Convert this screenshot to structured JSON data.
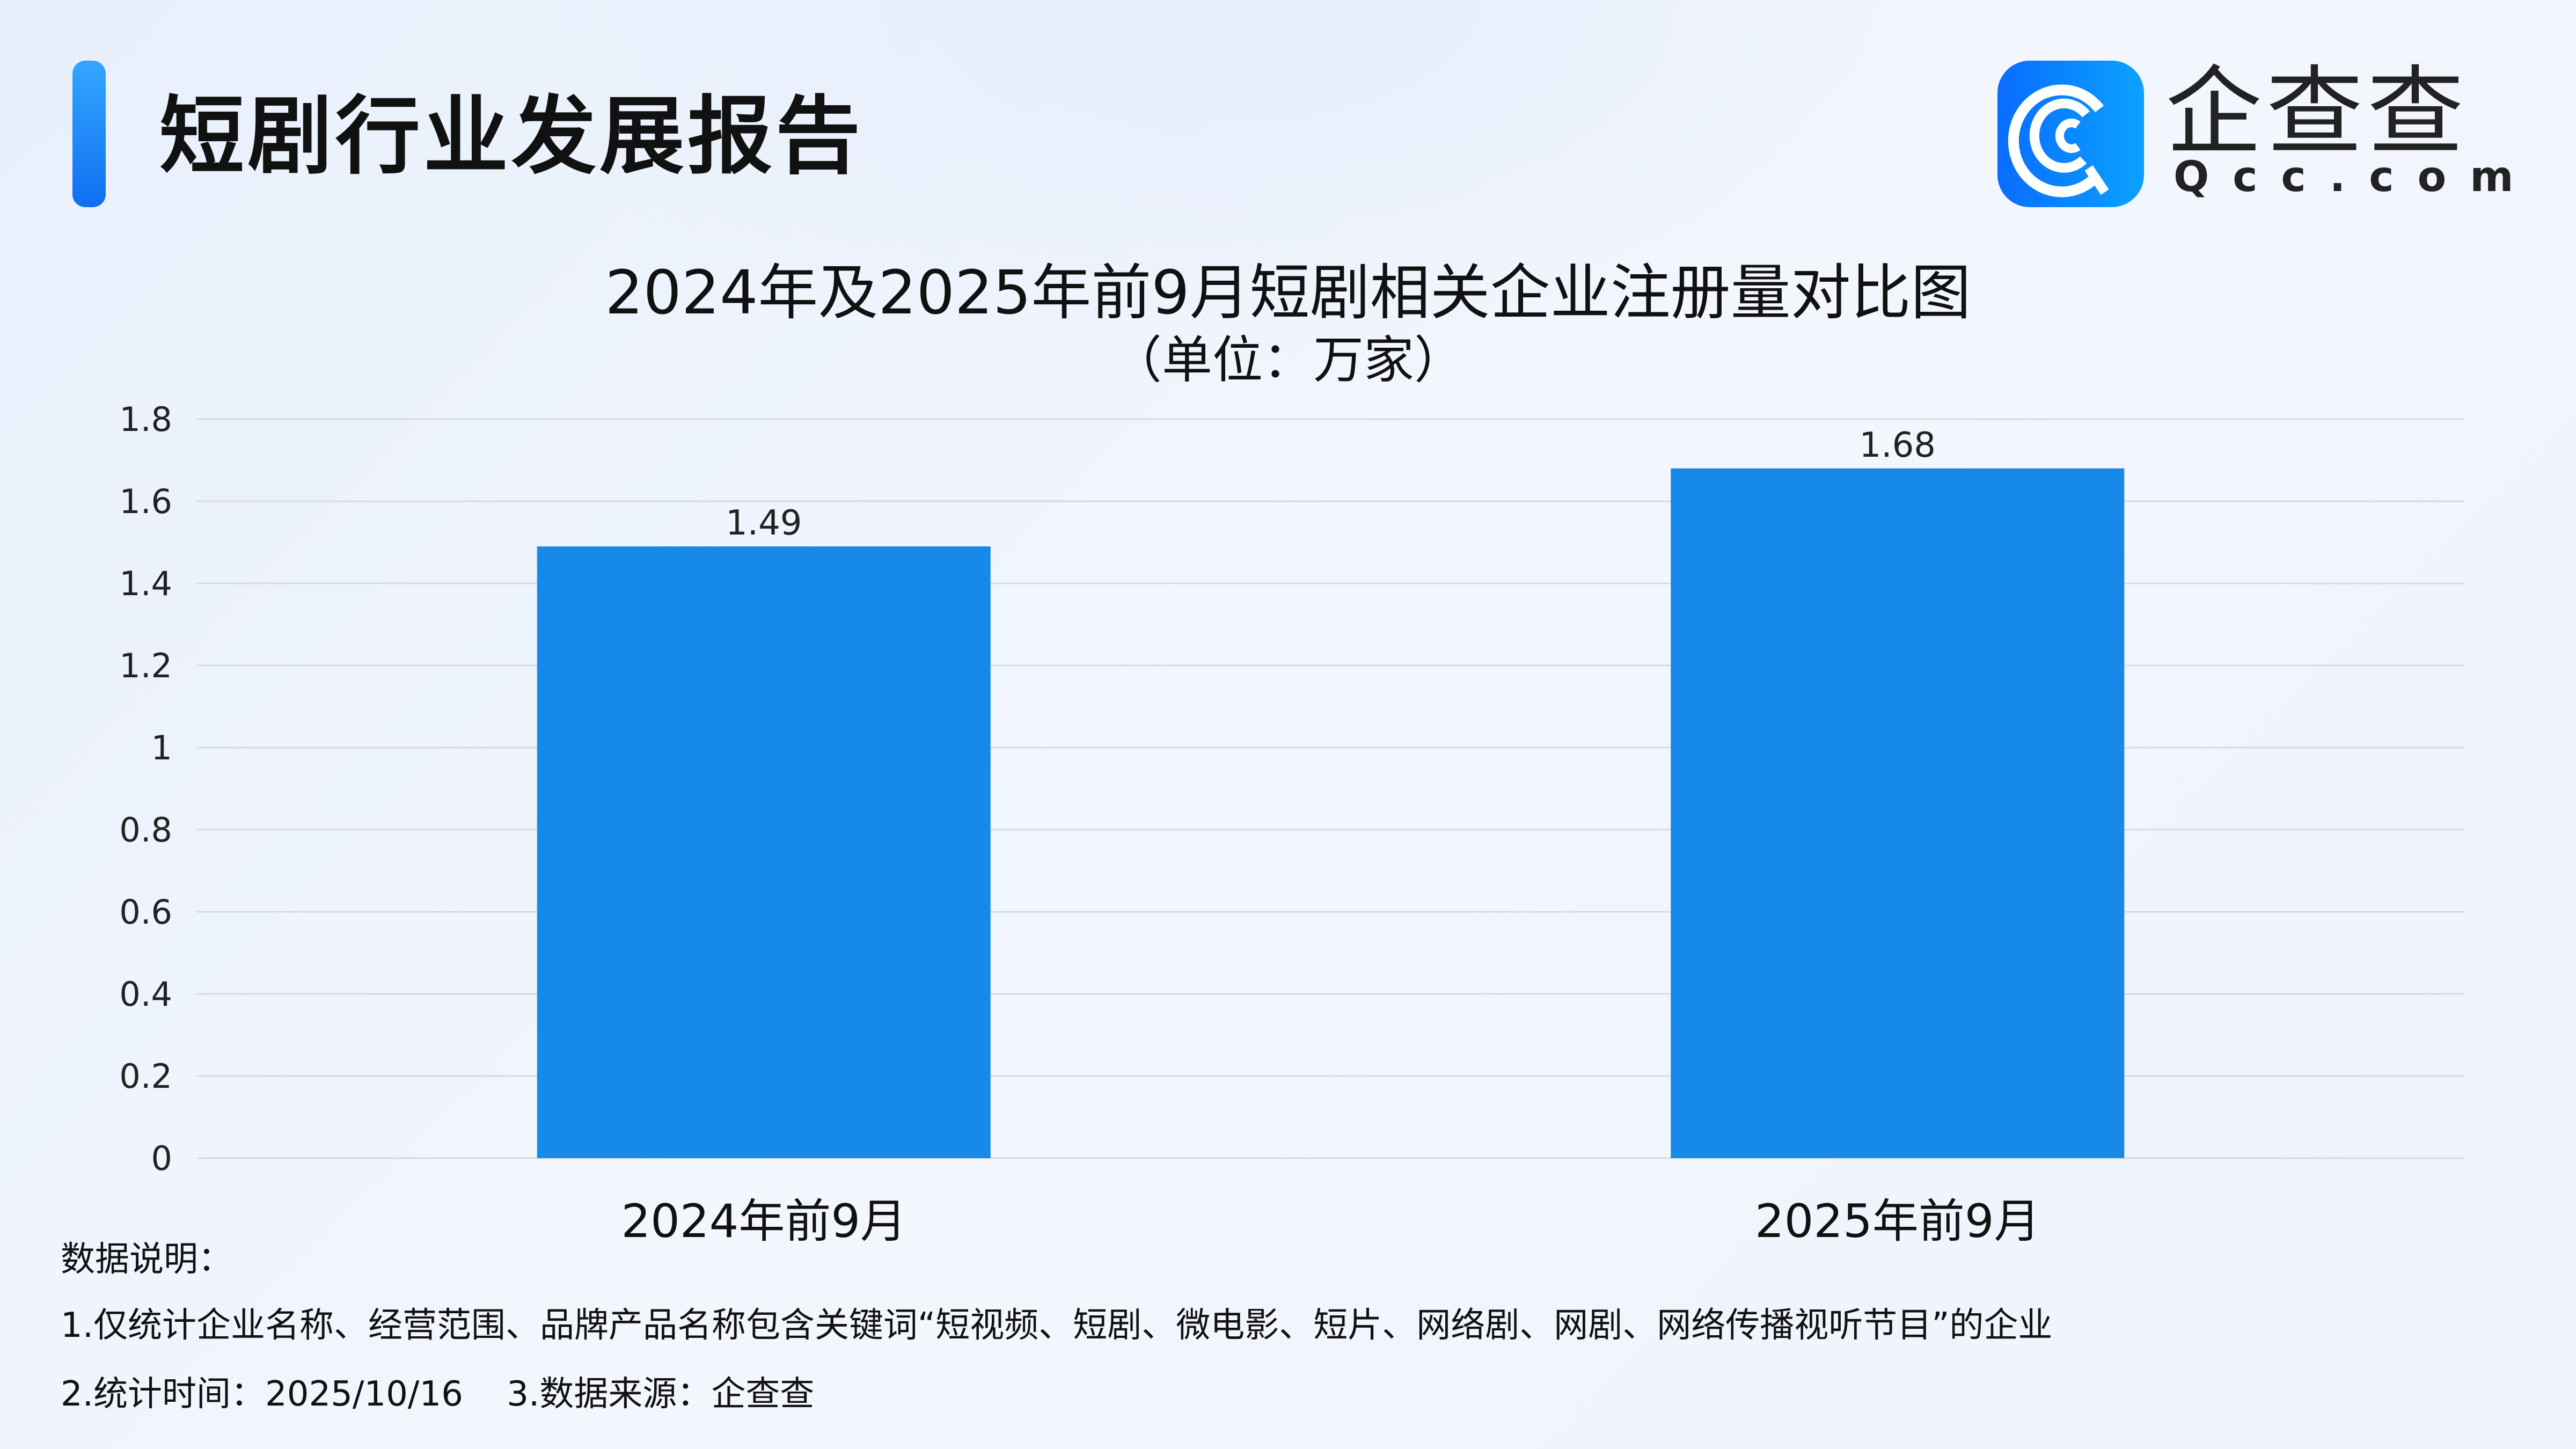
{
  "header": {
    "title": "短剧行业发展报告",
    "logo": {
      "cn": "企查查",
      "en": "Qcc.com"
    }
  },
  "colors": {
    "bar": "#1789e8",
    "accent": "#1a7ff0"
  },
  "chart_data": {
    "type": "bar",
    "title": "2024年及2025年前9月短剧相关企业注册量对比图",
    "subtitle": "（单位：万家）",
    "categories": [
      "2024年前9月",
      "2025年前9月"
    ],
    "values": [
      1.49,
      1.68
    ],
    "data_labels": [
      "1.49",
      "1.68"
    ],
    "ylim": [
      0,
      1.8
    ],
    "yticks": [
      "0",
      "0.2",
      "0.4",
      "0.6",
      "0.8",
      "1",
      "1.2",
      "1.4",
      "1.6",
      "1.8"
    ],
    "grid": true,
    "xlabel": "",
    "ylabel": ""
  },
  "notes": {
    "heading": "数据说明：",
    "line1": "1.仅统计企业名称、经营范围、品牌产品名称包含关键词“短视频、短剧、微电影、短片、网络剧、网剧、网络传播视听节目”的企业",
    "line2": "2.统计时间：2025/10/16    3.数据来源：企查查"
  }
}
